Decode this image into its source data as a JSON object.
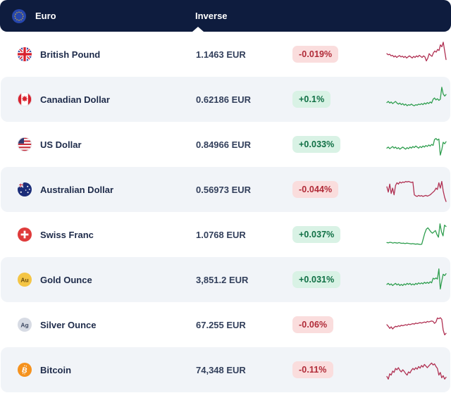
{
  "header": {
    "base_currency": "Euro",
    "column_label": "Inverse"
  },
  "colors": {
    "header_bg": "#0e1c3e",
    "row_alt_bg": "#f1f4f8",
    "badge_up_bg": "#d9f2e5",
    "badge_up_text": "#0f6f44",
    "badge_down_bg": "#fadddd",
    "badge_down_text": "#b02a37",
    "spark_up": "#2f9e4f",
    "spark_down": "#b03052"
  },
  "rows": [
    {
      "name": "British Pound",
      "icon": "flag-uk",
      "value": "1.1463 EUR",
      "change": "-0.019%",
      "direction": "down",
      "spark": [
        0.52,
        0.48,
        0.5,
        0.44,
        0.46,
        0.4,
        0.44,
        0.38,
        0.42,
        0.45,
        0.4,
        0.43,
        0.38,
        0.42,
        0.36,
        0.4,
        0.44,
        0.4,
        0.36,
        0.42,
        0.38,
        0.44,
        0.4,
        0.46,
        0.42,
        0.38,
        0.44,
        0.4,
        0.25,
        0.35,
        0.52,
        0.46,
        0.42,
        0.55,
        0.62,
        0.58,
        0.68,
        0.64,
        0.85,
        0.78,
        0.95,
        0.62,
        0.3
      ]
    },
    {
      "name": "Canadian Dollar",
      "icon": "flag-canada",
      "value": "0.62186 EUR",
      "change": "+0.1%",
      "direction": "up",
      "spark": [
        0.38,
        0.42,
        0.36,
        0.4,
        0.34,
        0.38,
        0.42,
        0.36,
        0.32,
        0.36,
        0.3,
        0.34,
        0.28,
        0.32,
        0.26,
        0.3,
        0.28,
        0.32,
        0.28,
        0.26,
        0.3,
        0.28,
        0.32,
        0.3,
        0.34,
        0.3,
        0.36,
        0.32,
        0.38,
        0.34,
        0.4,
        0.36,
        0.5,
        0.55,
        0.48,
        0.52,
        0.46,
        0.5,
        0.95,
        0.7,
        0.62,
        0.68
      ]
    },
    {
      "name": "US Dollar",
      "icon": "flag-us",
      "value": "0.84966 EUR",
      "change": "+0.033%",
      "direction": "up",
      "spark": [
        0.36,
        0.4,
        0.34,
        0.38,
        0.42,
        0.36,
        0.4,
        0.34,
        0.38,
        0.32,
        0.36,
        0.4,
        0.36,
        0.32,
        0.38,
        0.34,
        0.4,
        0.36,
        0.42,
        0.38,
        0.44,
        0.4,
        0.36,
        0.42,
        0.38,
        0.44,
        0.4,
        0.46,
        0.42,
        0.48,
        0.44,
        0.5,
        0.46,
        0.68,
        0.72,
        0.66,
        0.7,
        0.1,
        0.3,
        0.58,
        0.52,
        0.6
      ]
    },
    {
      "name": "Australian Dollar",
      "icon": "flag-australia",
      "value": "0.56973 EUR",
      "change": "-0.044%",
      "direction": "down",
      "spark": [
        0.6,
        0.4,
        0.7,
        0.35,
        0.55,
        0.3,
        0.65,
        0.75,
        0.7,
        0.78,
        0.74,
        0.78,
        0.76,
        0.8,
        0.78,
        0.8,
        0.78,
        0.76,
        0.78,
        0.3,
        0.26,
        0.24,
        0.28,
        0.25,
        0.27,
        0.24,
        0.26,
        0.28,
        0.25,
        0.27,
        0.3,
        0.35,
        0.4,
        0.45,
        0.55,
        0.5,
        0.75,
        0.55,
        0.8,
        0.45,
        0.2,
        0.05
      ]
    },
    {
      "name": "Swiss Franc",
      "icon": "flag-switzerland",
      "value": "1.0768 EUR",
      "change": "+0.037%",
      "direction": "up",
      "spark": [
        0.2,
        0.19,
        0.21,
        0.2,
        0.18,
        0.2,
        0.19,
        0.18,
        0.2,
        0.18,
        0.17,
        0.18,
        0.16,
        0.18,
        0.17,
        0.16,
        0.15,
        0.16,
        0.15,
        0.14,
        0.15,
        0.14,
        0.13,
        0.14,
        0.35,
        0.55,
        0.7,
        0.75,
        0.68,
        0.6,
        0.55,
        0.6,
        0.65,
        0.5,
        0.4,
        0.9,
        0.6,
        0.45,
        0.85,
        0.8
      ]
    },
    {
      "name": "Gold Ounce",
      "icon": "gold",
      "value": "3,851.2 EUR",
      "change": "+0.031%",
      "direction": "up",
      "spark": [
        0.32,
        0.36,
        0.3,
        0.34,
        0.28,
        0.32,
        0.36,
        0.3,
        0.34,
        0.28,
        0.32,
        0.28,
        0.34,
        0.3,
        0.36,
        0.32,
        0.36,
        0.3,
        0.34,
        0.3,
        0.36,
        0.32,
        0.38,
        0.34,
        0.38,
        0.34,
        0.4,
        0.36,
        0.4,
        0.36,
        0.42,
        0.38,
        0.55,
        0.52,
        0.56,
        0.52,
        0.9,
        0.15,
        0.45,
        0.7,
        0.65,
        0.72
      ]
    },
    {
      "name": "Silver Ounce",
      "icon": "silver",
      "value": "67.255 EUR",
      "change": "-0.06%",
      "direction": "down",
      "spark": [
        0.5,
        0.44,
        0.36,
        0.42,
        0.34,
        0.4,
        0.44,
        0.42,
        0.46,
        0.44,
        0.48,
        0.46,
        0.48,
        0.5,
        0.48,
        0.52,
        0.5,
        0.52,
        0.54,
        0.52,
        0.56,
        0.54,
        0.56,
        0.58,
        0.56,
        0.58,
        0.6,
        0.58,
        0.62,
        0.6,
        0.62,
        0.64,
        0.62,
        0.55,
        0.6,
        0.75,
        0.72,
        0.76,
        0.7,
        0.3,
        0.12,
        0.18
      ]
    },
    {
      "name": "Bitcoin",
      "icon": "bitcoin",
      "value": "74,348 EUR",
      "change": "-0.11%",
      "direction": "down",
      "spark": [
        0.25,
        0.15,
        0.35,
        0.3,
        0.45,
        0.4,
        0.55,
        0.5,
        0.58,
        0.48,
        0.42,
        0.5,
        0.44,
        0.36,
        0.3,
        0.42,
        0.38,
        0.48,
        0.55,
        0.5,
        0.58,
        0.52,
        0.62,
        0.56,
        0.66,
        0.6,
        0.7,
        0.64,
        0.58,
        0.64,
        0.7,
        0.75,
        0.68,
        0.72,
        0.62,
        0.55,
        0.3,
        0.4,
        0.2,
        0.28,
        0.15,
        0.22
      ]
    }
  ]
}
